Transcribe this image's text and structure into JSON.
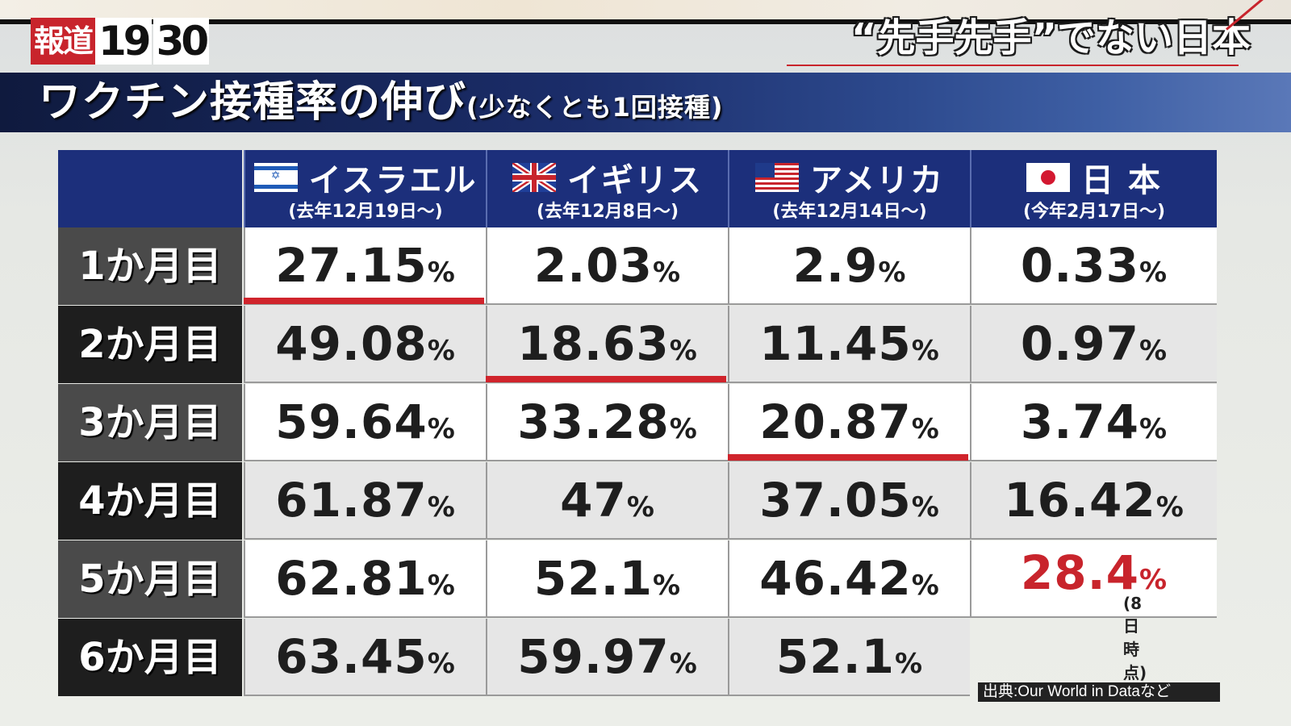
{
  "logo": {
    "brand": "報道",
    "num1": "19",
    "num2": "30"
  },
  "headline": "“先手先手”でない日本",
  "title": {
    "main": "ワクチン接種率の伸び",
    "sub": "(少なくとも1回接種)"
  },
  "countries": [
    {
      "name": "イスラエル",
      "start": "(去年12月19日～)",
      "flag": "israel-flag-icon"
    },
    {
      "name": "イギリス",
      "start": "(去年12月8日～)",
      "flag": "uk-flag-icon"
    },
    {
      "name": "アメリカ",
      "start": "(去年12月14日～)",
      "flag": "us-flag-icon"
    },
    {
      "name": "日 本",
      "start": "(今年2月17日～)",
      "flag": "japan-flag-icon"
    }
  ],
  "rows": [
    "1か月目",
    "2か月目",
    "3か月目",
    "4か月目",
    "5か月目",
    "6か月目"
  ],
  "cells": [
    [
      "27.15",
      "2.03",
      "2.9",
      "0.33"
    ],
    [
      "49.08",
      "18.63",
      "11.45",
      "0.97"
    ],
    [
      "59.64",
      "33.28",
      "20.87",
      "3.74"
    ],
    [
      "61.87",
      "47",
      "37.05",
      "16.42"
    ],
    [
      "62.81",
      "52.1",
      "46.42",
      "28.4"
    ],
    [
      "63.45",
      "59.97",
      "52.1",
      ""
    ]
  ],
  "unit": "%",
  "japan_note": "(8日時点)",
  "source": "出典:Our World in Dataなど",
  "highlight_color": "#d0242c",
  "header_color": "#1c2f7b",
  "chart_data": {
    "type": "table",
    "title": "ワクチン接種率の伸び",
    "subtitle": "(少なくとも1回接種)",
    "columns": [
      "イスラエル",
      "イギリス",
      "アメリカ",
      "日 本"
    ],
    "rows": [
      "1か月目",
      "2か月目",
      "3か月目",
      "4か月目",
      "5か月目",
      "6か月目"
    ],
    "series": [
      {
        "name": "イスラエル",
        "values": [
          27.15,
          49.08,
          59.64,
          61.87,
          62.81,
          63.45
        ]
      },
      {
        "name": "イギリス",
        "values": [
          2.03,
          18.63,
          33.28,
          47,
          52.1,
          59.97
        ]
      },
      {
        "name": "アメリカ",
        "values": [
          2.9,
          11.45,
          20.87,
          37.05,
          46.42,
          52.1
        ]
      },
      {
        "name": "日 本",
        "values": [
          0.33,
          0.97,
          3.74,
          16.42,
          28.4,
          null
        ]
      }
    ],
    "unit": "%"
  }
}
